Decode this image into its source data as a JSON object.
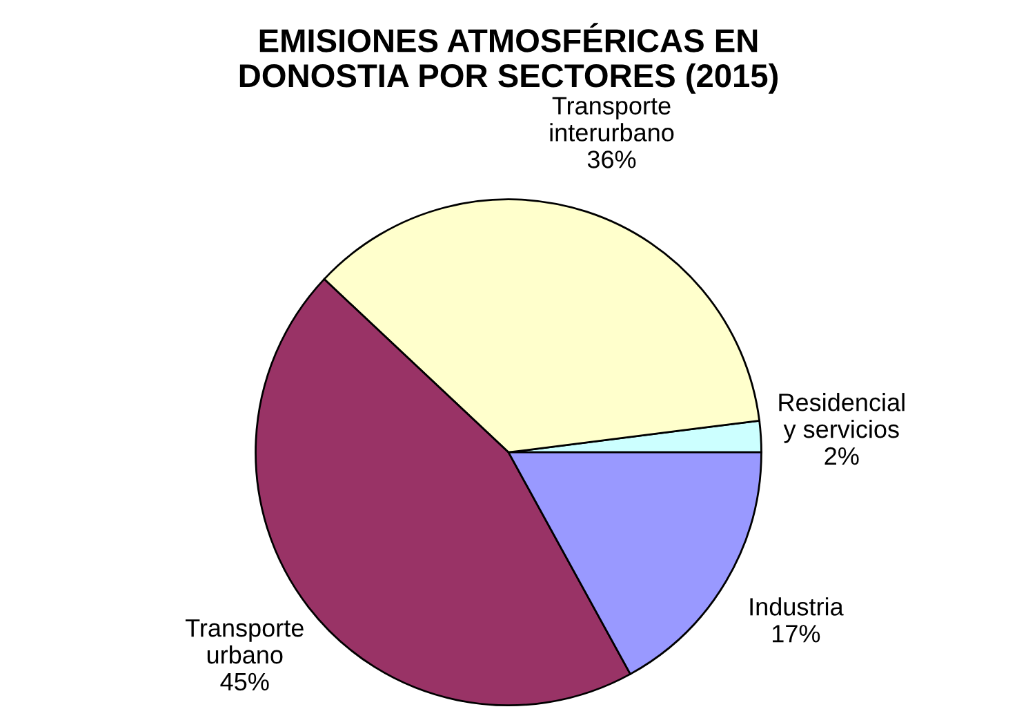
{
  "chart_data": {
    "type": "pie",
    "title": "EMISIONES ATMOSFÉRICAS EN\nDONOSTIA POR SECTORES (2015)",
    "categories": [
      "Residencial\ny servicios",
      "Transporte\ninterurbano",
      "Transporte\nurbano",
      "Industria"
    ],
    "values": [
      2,
      36,
      45,
      17
    ],
    "colors": [
      "#ccffff",
      "#ffffcc",
      "#993366",
      "#9999ff"
    ],
    "value_labels": [
      "2%",
      "36%",
      "45%",
      "17%"
    ]
  }
}
